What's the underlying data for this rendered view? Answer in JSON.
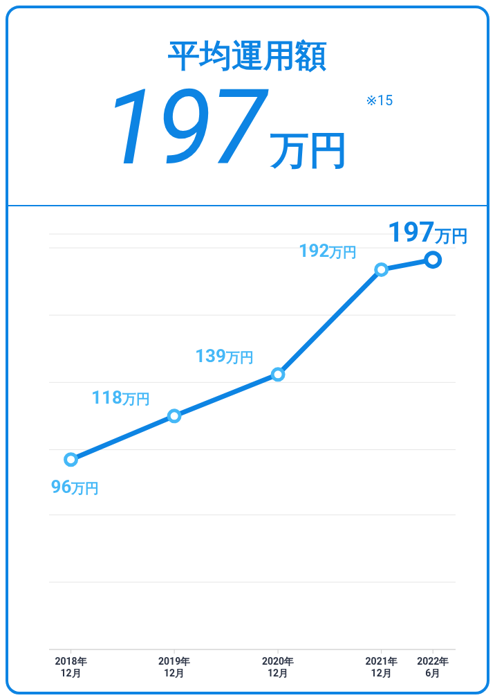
{
  "chart_data": {
    "type": "line",
    "title": "平均運用額",
    "subtitle": "197万円",
    "annotations": [
      "※15"
    ],
    "x": [
      "2018-12",
      "2019-12",
      "2020-12",
      "2021-12",
      "2022-06"
    ],
    "series": [
      {
        "color": "#0d84e3",
        "colors": [
          "#45b8f7",
          "#45b8f7",
          "#45b8f7",
          "#45b8f7",
          "#0d84e3"
        ],
        "values": [
          96,
          118,
          139,
          192,
          197
        ],
        "value_labels": [
          "96万円",
          "118万円",
          "139万円",
          "192万円",
          "197万円"
        ]
      }
    ],
    "xlim": [
      "2018-09-15",
      "2022-08-20"
    ],
    "xticks": [
      {
        "value": "2018-12",
        "label": "2018年\n12月"
      },
      {
        "value": "2019-12",
        "label": "2019年\n12月"
      },
      {
        "value": "2020-12",
        "label": "2020年\n12月"
      },
      {
        "value": "2021-12",
        "label": "2021年\n12月"
      },
      {
        "value": "2022-06",
        "label": "2022年\n6月"
      }
    ],
    "ylim": [
      0,
      210
    ],
    "yticks": [
      {
        "value": 0,
        "label": null
      },
      {
        "value": 34,
        "label": null
      },
      {
        "value": 68,
        "label": null
      },
      {
        "value": 101,
        "label": null
      },
      {
        "value": 135,
        "label": null
      },
      {
        "value": 169,
        "label": null
      },
      {
        "value": 203,
        "label": null
      }
    ],
    "tick_labels": "x",
    "grid": "y",
    "marker": "circle",
    "line_style": "solid"
  }
}
